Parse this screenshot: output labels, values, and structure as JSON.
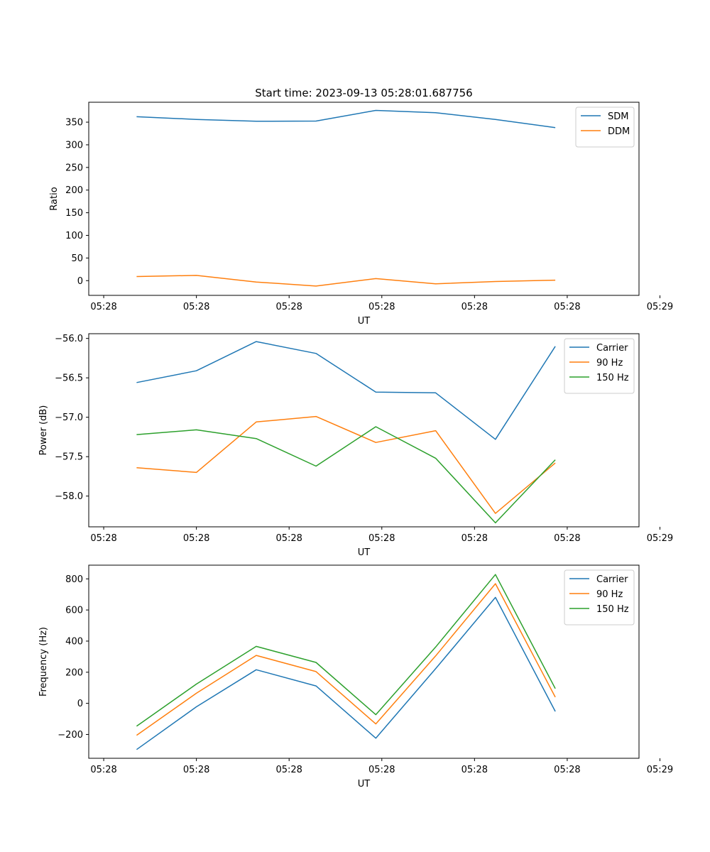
{
  "figure_title": "Start time: 2023-09-13 05:28:01.687756",
  "colors": {
    "blue": "#1f77b4",
    "orange": "#ff7f0e",
    "green": "#2ca02c"
  },
  "chart_data": [
    {
      "type": "line",
      "title": "Start time: 2023-09-13 05:28:01.687756",
      "xlabel": "UT",
      "ylabel": "Ratio",
      "x": [
        1,
        2,
        3,
        4,
        5,
        6,
        7,
        8
      ],
      "xlim": [
        0.2,
        9.4
      ],
      "xticks": [
        0.45,
        2.0,
        3.55,
        5.1,
        6.65,
        8.2,
        9.75
      ],
      "xtick_labels": [
        "05:28",
        "05:28",
        "05:28",
        "05:28",
        "05:28",
        "05:28",
        "05:29"
      ],
      "ylim": [
        -32.5,
        394
      ],
      "yticks": [
        0,
        50,
        100,
        150,
        200,
        250,
        300,
        350
      ],
      "ytick_labels": [
        "0",
        "50",
        "100",
        "150",
        "200",
        "250",
        "300",
        "350"
      ],
      "legend_loc": "upper right",
      "series": [
        {
          "name": "SDM",
          "color": "#1f77b4",
          "values": [
            362,
            356,
            352,
            352.5,
            376,
            371,
            356,
            338
          ]
        },
        {
          "name": "DDM",
          "color": "#ff7f0e",
          "values": [
            9,
            11.5,
            -3,
            -12,
            4.5,
            -7,
            -2,
            1
          ]
        }
      ]
    },
    {
      "type": "line",
      "title": "",
      "xlabel": "UT",
      "ylabel": "Power (dB)",
      "x": [
        1,
        2,
        3,
        4,
        5,
        6,
        7,
        8
      ],
      "xlim": [
        0.2,
        9.4
      ],
      "xticks": [
        0.45,
        2.0,
        3.55,
        5.1,
        6.65,
        8.2,
        9.75
      ],
      "xtick_labels": [
        "05:28",
        "05:28",
        "05:28",
        "05:28",
        "05:28",
        "05:28",
        "05:29"
      ],
      "ylim": [
        -58.39,
        -55.94
      ],
      "yticks": [
        -58.0,
        -57.5,
        -57.0,
        -56.5,
        -56.0
      ],
      "ytick_labels": [
        "−58.0",
        "−57.5",
        "−57.0",
        "−56.5",
        "−56.0"
      ],
      "legend_loc": "upper right",
      "series": [
        {
          "name": "Carrier",
          "color": "#1f77b4",
          "values": [
            -56.56,
            -56.41,
            -56.04,
            -56.19,
            -56.68,
            -56.69,
            -57.28,
            -56.1
          ]
        },
        {
          "name": "90 Hz",
          "color": "#ff7f0e",
          "values": [
            -57.64,
            -57.7,
            -57.06,
            -56.99,
            -57.32,
            -57.17,
            -58.22,
            -57.58
          ]
        },
        {
          "name": "150 Hz",
          "color": "#2ca02c",
          "values": [
            -57.22,
            -57.16,
            -57.27,
            -57.62,
            -57.12,
            -57.52,
            -58.34,
            -57.54
          ]
        }
      ]
    },
    {
      "type": "line",
      "title": "",
      "xlabel": "UT",
      "ylabel": "Frequency (Hz)",
      "x": [
        1,
        2,
        3,
        4,
        5,
        6,
        7,
        8
      ],
      "xlim": [
        0.2,
        9.4
      ],
      "xticks": [
        0.45,
        2.0,
        3.55,
        5.1,
        6.65,
        8.2,
        9.75
      ],
      "xtick_labels": [
        "05:28",
        "05:28",
        "05:28",
        "05:28",
        "05:28",
        "05:28",
        "05:29"
      ],
      "ylim": [
        -353,
        888
      ],
      "yticks": [
        -200,
        0,
        200,
        400,
        600,
        800
      ],
      "ytick_labels": [
        "−200",
        "0",
        "200",
        "400",
        "600",
        "800"
      ],
      "legend_loc": "upper right",
      "series": [
        {
          "name": "Carrier",
          "color": "#1f77b4",
          "values": [
            -297,
            -22,
            216,
            112,
            -224,
            223,
            681,
            -52
          ]
        },
        {
          "name": "90 Hz",
          "color": "#ff7f0e",
          "values": [
            -205,
            65,
            308,
            204,
            -132,
            305,
            769,
            40
          ]
        },
        {
          "name": "150 Hz",
          "color": "#2ca02c",
          "values": [
            -147,
            124,
            366,
            263,
            -73,
            362,
            828,
            95
          ]
        }
      ]
    }
  ]
}
